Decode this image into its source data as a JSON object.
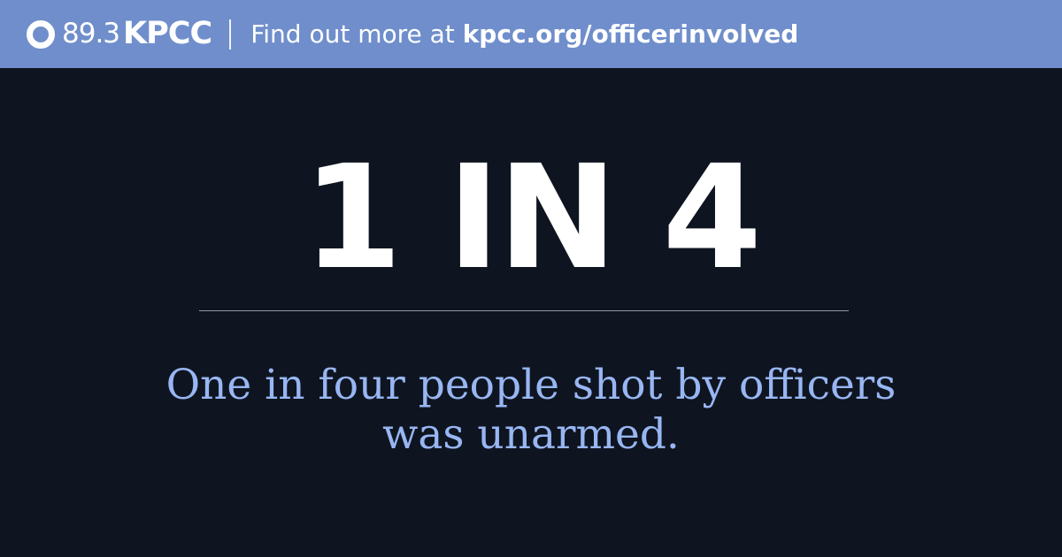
{
  "banner": {
    "logo_frequency": "89.3",
    "logo_callsign": "KPCC",
    "tagline_prefix": "Find out more at",
    "tagline_url": "kpcc.org/officerinvolved",
    "background_color": "#6f8ecb"
  },
  "main": {
    "headline": "1 IN 4",
    "caption_line1": "One in four people shot by officers",
    "caption_line2": "was unarmed.",
    "background_color": "#0f1520",
    "caption_color": "#98b6f3"
  }
}
